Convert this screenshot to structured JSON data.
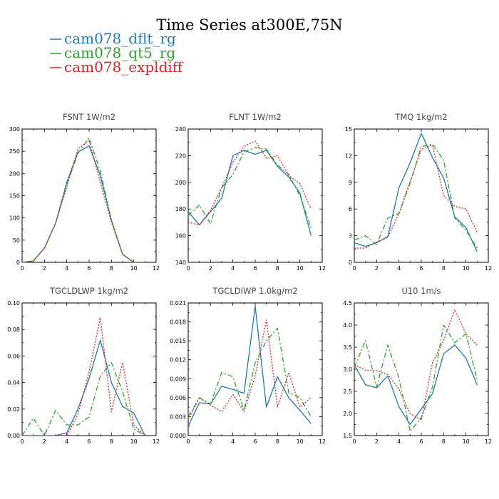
{
  "figure": {
    "title": "Time Series at300E,75N"
  },
  "legend": [
    {
      "label": "cam078_dflt_rg",
      "color": "#1f77b4",
      "dash": ""
    },
    {
      "label": "cam078_qt5_rg",
      "color": "#2ca02c",
      "dash": "7,3,2,3"
    },
    {
      "label": "cam078_expldiff",
      "color": "#d62728",
      "dash": "2,2"
    }
  ],
  "chart_data": [
    {
      "type": "line",
      "title": "FSNT   1W/m2",
      "x": [
        0,
        1,
        2,
        3,
        4,
        5,
        6,
        7,
        8,
        9,
        10,
        11
      ],
      "xlim": [
        0,
        12
      ],
      "xticks": [
        0,
        2,
        4,
        6,
        8,
        10,
        12
      ],
      "ylim": [
        0,
        300
      ],
      "yticks": [
        0,
        50,
        100,
        150,
        200,
        250,
        300
      ],
      "ytick_labels": [
        "0",
        "50",
        "100",
        "150",
        "200",
        "250",
        "300"
      ],
      "series": [
        {
          "name": "cam078_dflt_rg",
          "values": [
            0,
            3,
            32,
            88,
            180,
            248,
            262,
            195,
            95,
            18,
            0,
            0
          ]
        },
        {
          "name": "cam078_qt5_rg",
          "values": [
            0,
            3,
            32,
            88,
            175,
            245,
            280,
            205,
            95,
            18,
            0,
            0
          ]
        },
        {
          "name": "cam078_expldiff",
          "values": [
            0,
            3,
            32,
            88,
            170,
            255,
            275,
            180,
            90,
            18,
            0,
            0
          ]
        }
      ]
    },
    {
      "type": "line",
      "title": "FLNT   1W/m2",
      "x": [
        0,
        1,
        2,
        3,
        4,
        5,
        6,
        7,
        8,
        9,
        10,
        11
      ],
      "xlim": [
        0,
        12
      ],
      "xticks": [
        0,
        2,
        4,
        6,
        8,
        10,
        12
      ],
      "ylim": [
        140,
        240
      ],
      "yticks": [
        140,
        160,
        180,
        200,
        220,
        240
      ],
      "ytick_labels": [
        "140",
        "160",
        "180",
        "200",
        "220",
        "240"
      ],
      "series": [
        {
          "name": "cam078_dflt_rg",
          "values": [
            178,
            168,
            178,
            188,
            220,
            224,
            221,
            224,
            212,
            204,
            192,
            160
          ]
        },
        {
          "name": "cam078_qt5_rg",
          "values": [
            175,
            183,
            169,
            196,
            206,
            223,
            226,
            225,
            213,
            206,
            190,
            166
          ]
        },
        {
          "name": "cam078_expldiff",
          "values": [
            170,
            168,
            179,
            196,
            215,
            227,
            231,
            218,
            220,
            205,
            199,
            180
          ]
        }
      ]
    },
    {
      "type": "line",
      "title": "TMQ   1kg/m2",
      "x": [
        0,
        1,
        2,
        3,
        4,
        5,
        6,
        7,
        8,
        9,
        10,
        11
      ],
      "xlim": [
        0,
        12
      ],
      "xticks": [
        0,
        2,
        4,
        6,
        8,
        10,
        12
      ],
      "ylim": [
        0,
        15
      ],
      "yticks": [
        0,
        3,
        6,
        9,
        12,
        15
      ],
      "ytick_labels": [
        "0",
        "3",
        "6",
        "9",
        "12",
        "15"
      ],
      "series": [
        {
          "name": "cam078_dflt_rg",
          "values": [
            2.2,
            1.8,
            2.2,
            2.9,
            8.4,
            11.2,
            14.5,
            11.8,
            9.5,
            5.1,
            3.9,
            1.2
          ]
        },
        {
          "name": "cam078_qt5_rg",
          "values": [
            2.5,
            3.0,
            2.0,
            5.0,
            5.5,
            8.9,
            13.0,
            13.3,
            11.5,
            5.0,
            3.6,
            1.6
          ]
        },
        {
          "name": "cam078_expldiff",
          "values": [
            1.6,
            1.6,
            2.3,
            2.8,
            5.5,
            9.1,
            12.7,
            13.2,
            7.5,
            6.3,
            6.0,
            3.4
          ]
        }
      ]
    },
    {
      "type": "line",
      "title": "TGCLDLWP   1kg/m2",
      "x": [
        0,
        1,
        2,
        3,
        4,
        5,
        6,
        7,
        8,
        9,
        10,
        11
      ],
      "xlim": [
        0,
        12
      ],
      "xticks": [
        0,
        2,
        4,
        6,
        8,
        10,
        12
      ],
      "ylim": [
        0,
        0.1
      ],
      "yticks": [
        0,
        0.02,
        0.04,
        0.06,
        0.08,
        0.1
      ],
      "ytick_labels": [
        "0.00",
        "0.02",
        "0.04",
        "0.06",
        "0.08",
        "0.10"
      ],
      "series": [
        {
          "name": "cam078_dflt_rg",
          "values": [
            0,
            0,
            0,
            0,
            0.002,
            0.02,
            0.043,
            0.072,
            0.04,
            0.022,
            0.017,
            0
          ]
        },
        {
          "name": "cam078_qt5_rg",
          "values": [
            0,
            0.013,
            0,
            0.019,
            0.008,
            0.008,
            0.014,
            0.045,
            0.055,
            0.033,
            0.005,
            0
          ]
        },
        {
          "name": "cam078_expldiff",
          "values": [
            0,
            0,
            0,
            0,
            0,
            0.016,
            0.048,
            0.089,
            0.018,
            0.055,
            0.008,
            0
          ]
        }
      ]
    },
    {
      "type": "line",
      "title": "TGCLDIWP   1.0kg/m2",
      "x": [
        0,
        1,
        2,
        3,
        4,
        5,
        6,
        7,
        8,
        9,
        10,
        11
      ],
      "xlim": [
        0,
        12
      ],
      "xticks": [
        0,
        2,
        4,
        6,
        8,
        10,
        12
      ],
      "ylim": [
        0,
        0.021
      ],
      "yticks": [
        0,
        0.003,
        0.006,
        0.009,
        0.012,
        0.015,
        0.018,
        0.021
      ],
      "ytick_labels": [
        "0.000",
        "0.003",
        "0.006",
        "0.009",
        "0.012",
        "0.015",
        "0.018",
        "0.021"
      ],
      "series": [
        {
          "name": "cam078_dflt_rg",
          "values": [
            0.0015,
            0.0052,
            0.005,
            0.0078,
            0.0073,
            0.0067,
            0.0205,
            0.0045,
            0.0093,
            0.006,
            0.004,
            0.0019
          ]
        },
        {
          "name": "cam078_qt5_rg",
          "values": [
            0.003,
            0.006,
            0.005,
            0.01,
            0.0093,
            0.004,
            0.0115,
            0.015,
            0.017,
            0.0068,
            0.006,
            0.003
          ]
        },
        {
          "name": "cam078_expldiff",
          "values": [
            0.0025,
            0.006,
            0.0048,
            0.0038,
            0.0065,
            0.0038,
            0.0095,
            0.0183,
            0.0045,
            0.01,
            0.0045,
            0.006
          ]
        }
      ]
    },
    {
      "type": "line",
      "title": "U10   1m/s",
      "x": [
        0,
        1,
        2,
        3,
        4,
        5,
        6,
        7,
        8,
        9,
        10,
        11
      ],
      "xlim": [
        0,
        12
      ],
      "xticks": [
        0,
        2,
        4,
        6,
        8,
        10,
        12
      ],
      "ylim": [
        1.5,
        4.5
      ],
      "yticks": [
        1.5,
        2.0,
        2.5,
        3.0,
        3.5,
        4.0,
        4.5
      ],
      "ytick_labels": [
        "1.5",
        "2.0",
        "2.5",
        "3.0",
        "3.5",
        "4.0",
        "4.5"
      ],
      "series": [
        {
          "name": "cam078_dflt_rg",
          "values": [
            3.1,
            2.65,
            2.58,
            2.85,
            2.15,
            1.75,
            2.1,
            2.45,
            3.35,
            3.55,
            3.25,
            2.65
          ]
        },
        {
          "name": "cam078_qt5_rg",
          "values": [
            3.05,
            3.65,
            2.6,
            3.55,
            2.8,
            1.6,
            1.9,
            2.6,
            4.0,
            3.6,
            3.8,
            2.75
          ]
        },
        {
          "name": "cam078_expldiff",
          "values": [
            3.1,
            2.98,
            2.97,
            2.88,
            2.55,
            2.0,
            1.85,
            3.15,
            3.65,
            4.35,
            3.8,
            3.55
          ]
        }
      ]
    }
  ]
}
